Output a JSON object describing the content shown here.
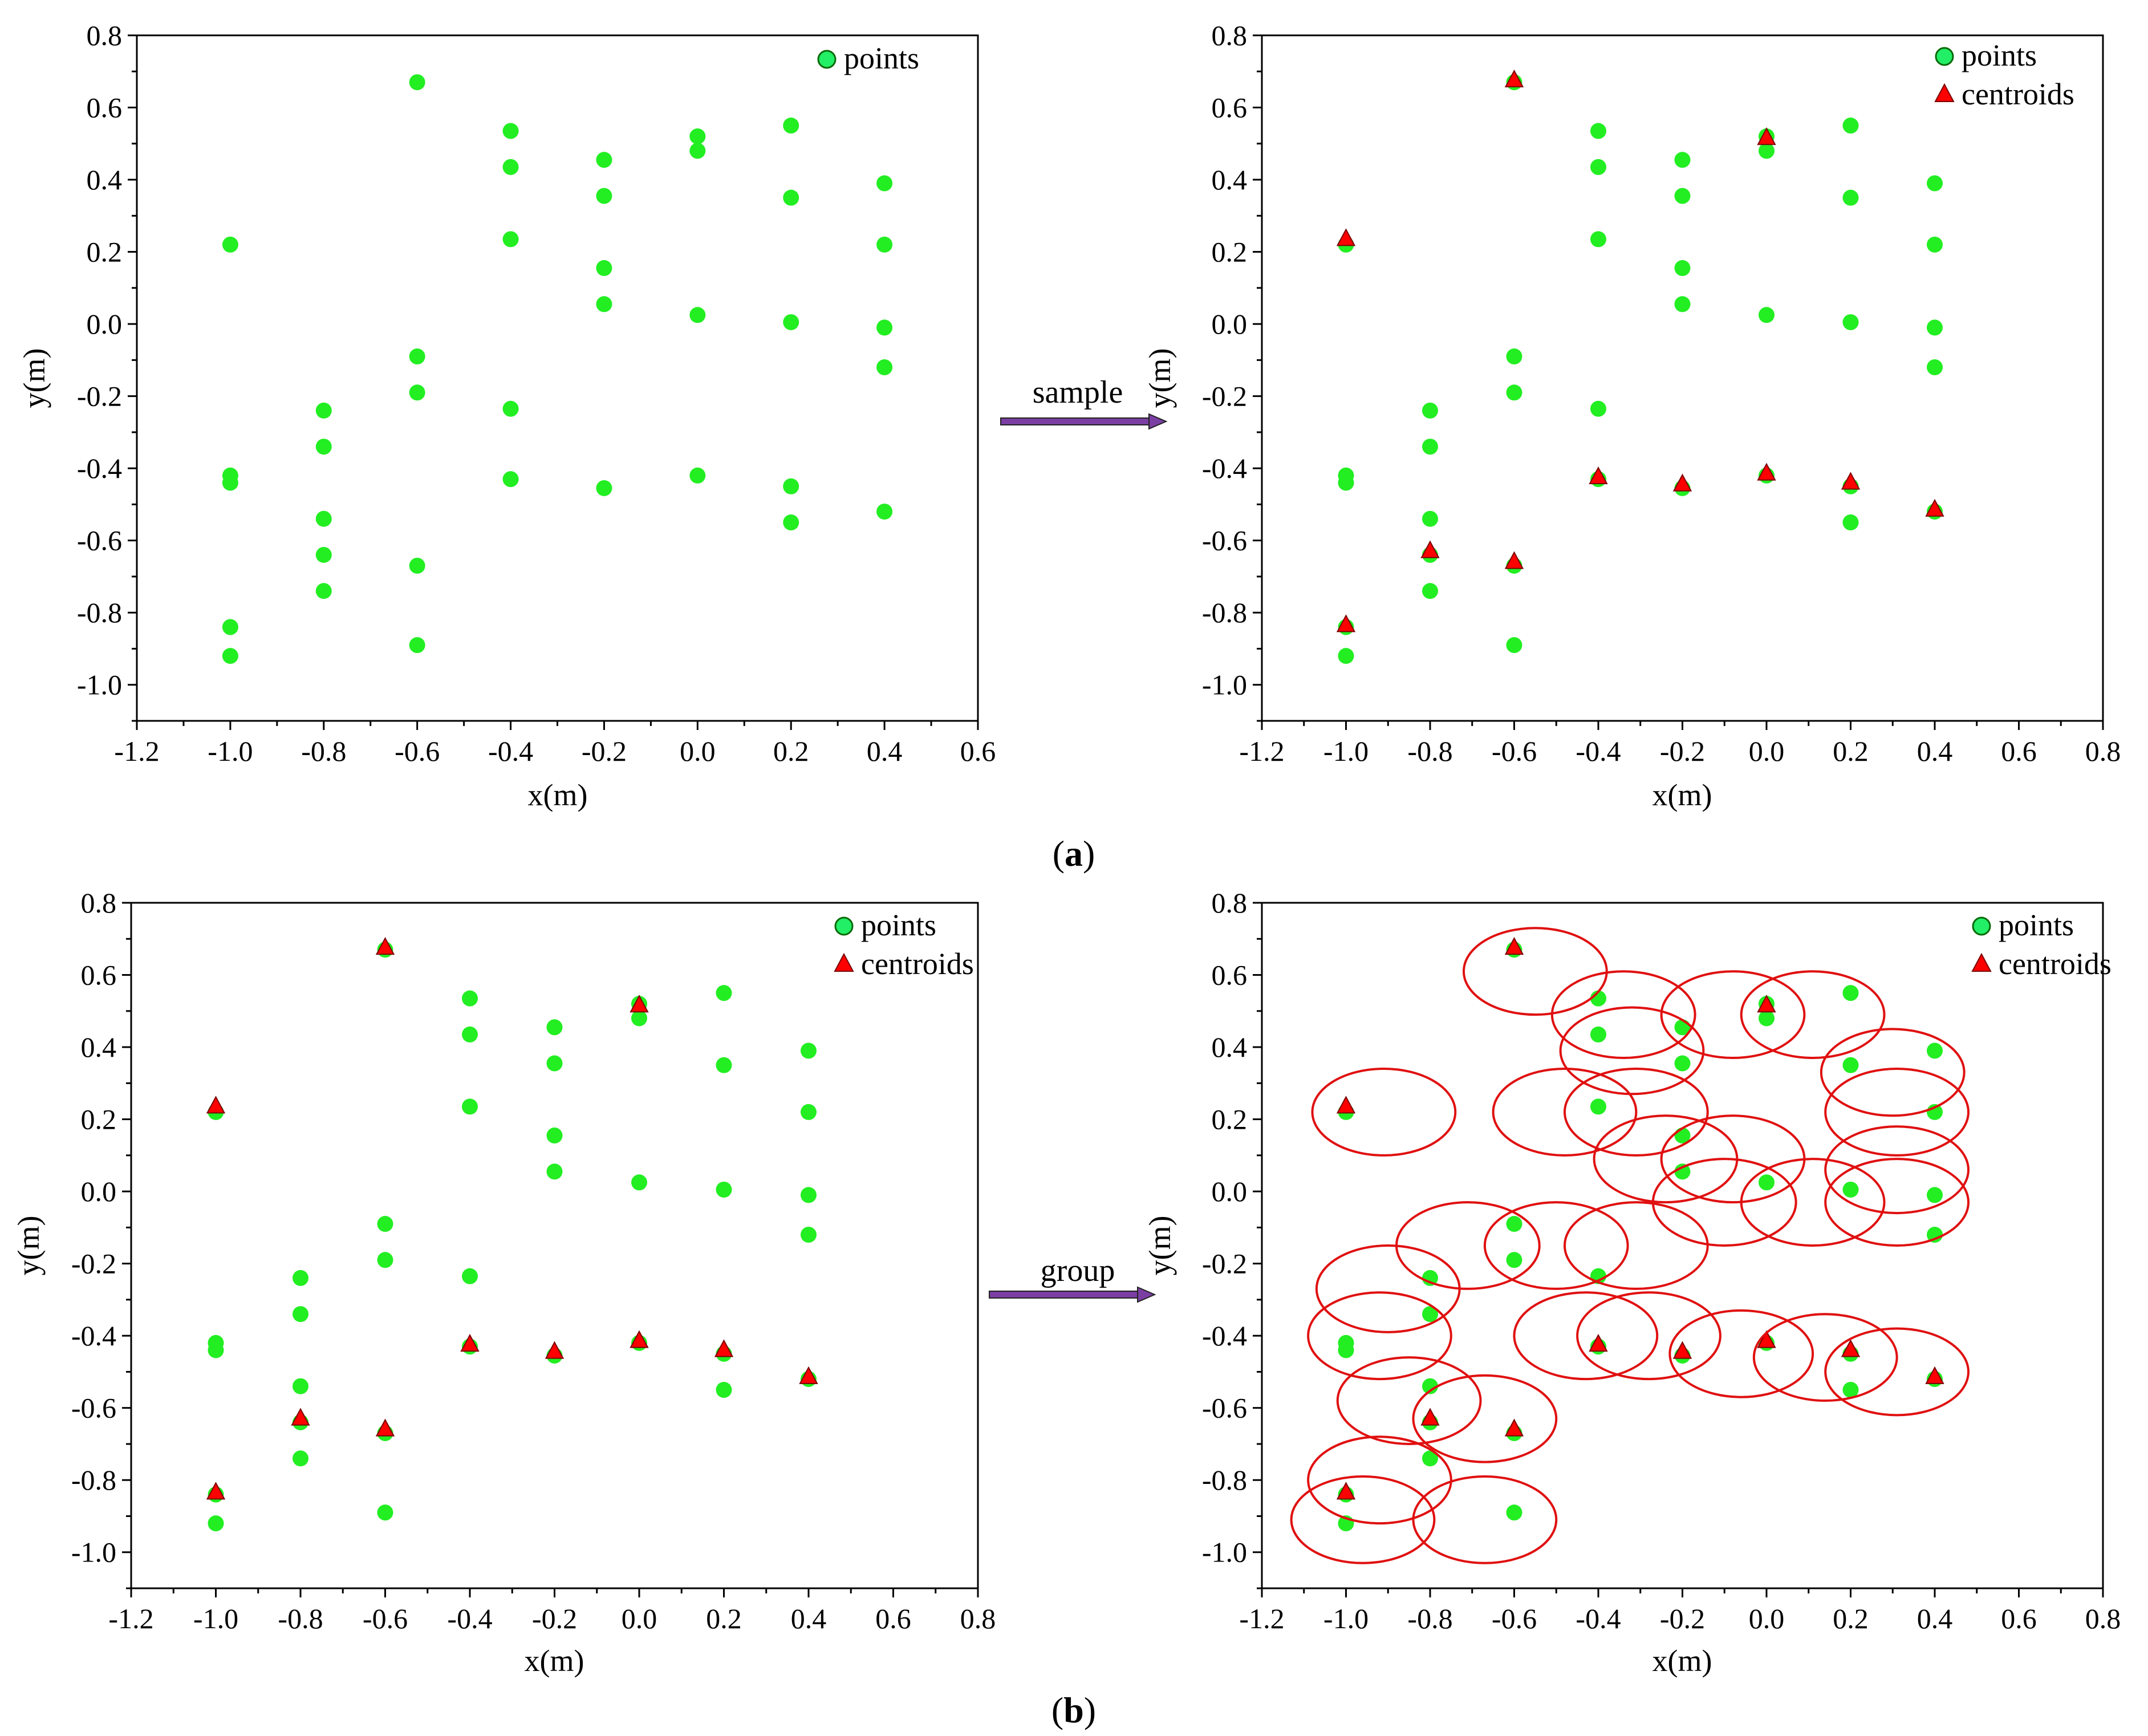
{
  "colors": {
    "point_fill": "#22ee22",
    "legend_point_fill": "#22ee66",
    "point_stroke": "#0a6a0a",
    "centroid_fill": "#ff0000",
    "centroid_stroke": "#7a0000",
    "ellipse_stroke": "#e01010",
    "arrow_fill": "#7b3fa3",
    "arrow_stroke": "#222222",
    "axis": "#000000"
  },
  "captions": [
    {
      "open": "(",
      "letter": "a",
      "close": ")"
    },
    {
      "open": "(",
      "letter": "b",
      "close": ")"
    }
  ],
  "arrows": [
    {
      "label": "sample"
    },
    {
      "label": "group"
    }
  ],
  "chart_data": [
    {
      "type": "scatter",
      "id": "a-left",
      "xlabel": "x(m)",
      "ylabel": "y(m)",
      "xlim": [
        -1.2,
        0.6
      ],
      "ylim": [
        -1.1,
        0.8
      ],
      "xticks": [
        -1.2,
        -1.0,
        -0.8,
        -0.6,
        -0.4,
        -0.2,
        0.0,
        0.2,
        0.4,
        0.6
      ],
      "xtick_labels": [
        "-1.2",
        "-1.0",
        "-0.8",
        "-0.6",
        "-0.4",
        "-0.2",
        "0.0",
        "0.2",
        "0.4",
        "0.6"
      ],
      "yticks": [
        -1.0,
        -0.8,
        -0.6,
        -0.4,
        -0.2,
        0.0,
        0.2,
        0.4,
        0.6,
        0.8
      ],
      "ytick_labels": [
        "-1.0",
        "-0.8",
        "-0.6",
        "-0.4",
        "-0.2",
        "0.0",
        "0.2",
        "0.4",
        "0.6",
        "0.8"
      ],
      "legend": [
        {
          "label": "points",
          "marker": "circle"
        }
      ],
      "show_centroids": false,
      "show_groups": false
    },
    {
      "type": "scatter",
      "id": "a-right",
      "xlabel": "x(m)",
      "ylabel": "y(m)",
      "xlim": [
        -1.2,
        0.8
      ],
      "ylim": [
        -1.1,
        0.8
      ],
      "xticks": [
        -1.2,
        -1.0,
        -0.8,
        -0.6,
        -0.4,
        -0.2,
        0.0,
        0.2,
        0.4,
        0.6,
        0.8
      ],
      "xtick_labels": [
        "-1.2",
        "-1.0",
        "-0.8",
        "-0.6",
        "-0.4",
        "-0.2",
        "0.0",
        "0.2",
        "0.4",
        "0.6",
        "0.8"
      ],
      "yticks": [
        -1.0,
        -0.8,
        -0.6,
        -0.4,
        -0.2,
        0.0,
        0.2,
        0.4,
        0.6,
        0.8
      ],
      "ytick_labels": [
        "-1.0",
        "-0.8",
        "-0.6",
        "-0.4",
        "-0.2",
        "0.0",
        "0.2",
        "0.4",
        "0.6",
        "0.8"
      ],
      "legend": [
        {
          "label": "points",
          "marker": "circle"
        },
        {
          "label": "centroids",
          "marker": "triangle"
        }
      ],
      "show_centroids": true,
      "show_groups": false
    },
    {
      "type": "scatter",
      "id": "b-left",
      "xlabel": "x(m)",
      "ylabel": "y(m)",
      "xlim": [
        -1.2,
        0.8
      ],
      "ylim": [
        -1.1,
        0.8
      ],
      "xticks": [
        -1.2,
        -1.0,
        -0.8,
        -0.6,
        -0.4,
        -0.2,
        0.0,
        0.2,
        0.4,
        0.6,
        0.8
      ],
      "xtick_labels": [
        "-1.2",
        "-1.0",
        "-0.8",
        "-0.6",
        "-0.4",
        "-0.2",
        "0.0",
        "0.2",
        "0.4",
        "0.6",
        "0.8"
      ],
      "yticks": [
        -1.0,
        -0.8,
        -0.6,
        -0.4,
        -0.2,
        0.0,
        0.2,
        0.4,
        0.6,
        0.8
      ],
      "ytick_labels": [
        "-1.0",
        "-0.8",
        "-0.6",
        "-0.4",
        "-0.2",
        "0.0",
        "0.2",
        "0.4",
        "0.6",
        "0.8"
      ],
      "legend": [
        {
          "label": "points",
          "marker": "circle"
        },
        {
          "label": "centroids",
          "marker": "triangle"
        }
      ],
      "show_centroids": true,
      "show_groups": false
    },
    {
      "type": "scatter",
      "id": "b-right",
      "xlabel": "x(m)",
      "ylabel": "y(m)",
      "xlim": [
        -1.2,
        0.8
      ],
      "ylim": [
        -1.1,
        0.8
      ],
      "xticks": [
        -1.2,
        -1.0,
        -0.8,
        -0.6,
        -0.4,
        -0.2,
        0.0,
        0.2,
        0.4,
        0.6,
        0.8
      ],
      "xtick_labels": [
        "-1.2",
        "-1.0",
        "-0.8",
        "-0.6",
        "-0.4",
        "-0.2",
        "0.0",
        "0.2",
        "0.4",
        "0.6",
        "0.8"
      ],
      "yticks": [
        -1.0,
        -0.8,
        -0.6,
        -0.4,
        -0.2,
        0.0,
        0.2,
        0.4,
        0.6,
        0.8
      ],
      "ytick_labels": [
        "-1.0",
        "-0.8",
        "-0.6",
        "-0.4",
        "-0.2",
        "0.0",
        "0.2",
        "0.4",
        "0.6",
        "0.8"
      ],
      "legend": [
        {
          "label": "points",
          "marker": "circle"
        },
        {
          "label": "centroids",
          "marker": "triangle"
        }
      ],
      "show_centroids": true,
      "show_groups": true
    }
  ],
  "dataset": {
    "points": [
      [
        -1.0,
        0.22
      ],
      [
        -1.0,
        -0.42
      ],
      [
        -1.0,
        -0.44
      ],
      [
        -1.0,
        -0.84
      ],
      [
        -1.0,
        -0.92
      ],
      [
        -0.8,
        -0.24
      ],
      [
        -0.8,
        -0.34
      ],
      [
        -0.8,
        -0.54
      ],
      [
        -0.8,
        -0.64
      ],
      [
        -0.8,
        -0.74
      ],
      [
        -0.6,
        0.67
      ],
      [
        -0.6,
        -0.09
      ],
      [
        -0.6,
        -0.19
      ],
      [
        -0.6,
        -0.67
      ],
      [
        -0.6,
        -0.89
      ],
      [
        -0.4,
        0.535
      ],
      [
        -0.4,
        0.435
      ],
      [
        -0.4,
        0.235
      ],
      [
        -0.4,
        -0.235
      ],
      [
        -0.4,
        -0.43
      ],
      [
        -0.2,
        0.455
      ],
      [
        -0.2,
        0.355
      ],
      [
        -0.2,
        0.155
      ],
      [
        -0.2,
        0.055
      ],
      [
        -0.2,
        -0.455
      ],
      [
        0.0,
        0.52
      ],
      [
        0.0,
        0.48
      ],
      [
        0.0,
        0.025
      ],
      [
        0.0,
        -0.42
      ],
      [
        0.2,
        0.55
      ],
      [
        0.2,
        0.35
      ],
      [
        0.2,
        0.005
      ],
      [
        0.2,
        -0.45
      ],
      [
        0.2,
        -0.55
      ],
      [
        0.4,
        0.39
      ],
      [
        0.4,
        0.22
      ],
      [
        0.4,
        -0.01
      ],
      [
        0.4,
        -0.12
      ],
      [
        0.4,
        -0.52
      ]
    ],
    "centroids": [
      [
        -1.0,
        0.235
      ],
      [
        -0.6,
        0.675
      ],
      [
        0.0,
        0.515
      ],
      [
        -0.4,
        -0.425
      ],
      [
        -0.2,
        -0.445
      ],
      [
        0.0,
        -0.415
      ],
      [
        0.2,
        -0.44
      ],
      [
        0.4,
        -0.515
      ],
      [
        -0.8,
        -0.63
      ],
      [
        -0.6,
        -0.66
      ],
      [
        -1.0,
        -0.835
      ]
    ],
    "group_centers": [
      [
        -0.55,
        0.61
      ],
      [
        -0.34,
        0.49
      ],
      [
        -0.08,
        0.49
      ],
      [
        0.11,
        0.49
      ],
      [
        -0.32,
        0.39
      ],
      [
        0.3,
        0.33
      ],
      [
        -0.91,
        0.22
      ],
      [
        -0.48,
        0.22
      ],
      [
        -0.31,
        0.22
      ],
      [
        0.31,
        0.22
      ],
      [
        -0.24,
        0.09
      ],
      [
        -0.08,
        0.09
      ],
      [
        0.31,
        0.06
      ],
      [
        -0.1,
        -0.03
      ],
      [
        0.11,
        -0.03
      ],
      [
        0.31,
        -0.03
      ],
      [
        -0.71,
        -0.15
      ],
      [
        -0.5,
        -0.15
      ],
      [
        -0.31,
        -0.15
      ],
      [
        -0.9,
        -0.27
      ],
      [
        -0.43,
        -0.4
      ],
      [
        -0.28,
        -0.4
      ],
      [
        -0.92,
        -0.4
      ],
      [
        -0.06,
        -0.45
      ],
      [
        0.14,
        -0.46
      ],
      [
        0.31,
        -0.5
      ],
      [
        -0.85,
        -0.58
      ],
      [
        -0.67,
        -0.63
      ],
      [
        -0.92,
        -0.8
      ],
      [
        -0.96,
        -0.91
      ],
      [
        -0.67,
        -0.91
      ]
    ],
    "group_radius": [
      0.17,
      0.12
    ]
  }
}
